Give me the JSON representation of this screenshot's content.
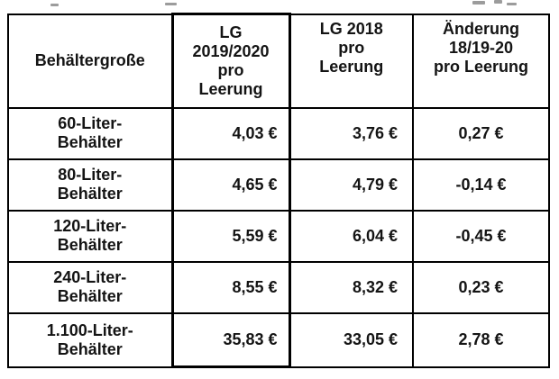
{
  "chart_data": {
    "type": "table",
    "title": "",
    "columns": [
      "Behältergroße",
      "LG 2019/2020 pro Leerung",
      "LG 2018 pro Leerung",
      "Änderung 18/19-20 pro Leerung"
    ],
    "rows": [
      [
        "60-Liter-Behälter",
        "4,03 €",
        "3,76 €",
        "0,27 €"
      ],
      [
        "80-Liter-Behälter",
        "4,65 €",
        "4,79 €",
        "-0,14 €"
      ],
      [
        "120-Liter-Behälter",
        "5,59 €",
        "6,04 €",
        "-0,45 €"
      ],
      [
        "240-Liter-Behälter",
        "8,55 €",
        "8,32 €",
        "0,23 €"
      ],
      [
        "1.100-Liter-Behälter",
        "35,83 €",
        "33,05 €",
        "2,78 €"
      ]
    ],
    "values_eur": {
      "lg_2019_2020_pro_leerung": [
        4.03,
        4.65,
        5.59,
        8.55,
        35.83
      ],
      "lg_2018_pro_leerung": [
        3.76,
        4.79,
        6.04,
        8.32,
        33.05
      ],
      "aenderung_18_19_20_pro_leerung": [
        0.27,
        -0.14,
        -0.45,
        0.23,
        2.78
      ]
    },
    "highlighted_column": "LG 2019/2020 pro Leerung"
  },
  "table": {
    "headers": [
      {
        "lines": [
          "Behältergroße"
        ]
      },
      {
        "lines": [
          "LG",
          "2019/2020",
          "pro",
          "Leerung"
        ]
      },
      {
        "lines": [
          "LG 2018",
          "pro",
          "Leerung"
        ]
      },
      {
        "lines": [
          "Änderung",
          "18/19-20",
          "pro Leerung"
        ]
      }
    ],
    "rows": [
      {
        "size_lines": [
          "60-Liter-",
          "Behälter"
        ],
        "lg_2019_2020": "4,03 €",
        "lg_2018": "3,76 €",
        "change": "0,27 €"
      },
      {
        "size_lines": [
          "80-Liter-",
          "Behälter"
        ],
        "lg_2019_2020": "4,65 €",
        "lg_2018": "4,79 €",
        "change": "-0,14 €"
      },
      {
        "size_lines": [
          "120-Liter-",
          "Behälter"
        ],
        "lg_2019_2020": "5,59 €",
        "lg_2018": "6,04 €",
        "change": "-0,45 €"
      },
      {
        "size_lines": [
          "240-Liter-",
          "Behälter"
        ],
        "lg_2019_2020": "8,55 €",
        "lg_2018": "8,32 €",
        "change": "0,23 €"
      },
      {
        "size_lines": [
          "1.100-Liter-",
          "Behälter"
        ],
        "lg_2019_2020": "35,83 €",
        "lg_2018": "33,05 €",
        "change": "2,78 €"
      }
    ]
  }
}
